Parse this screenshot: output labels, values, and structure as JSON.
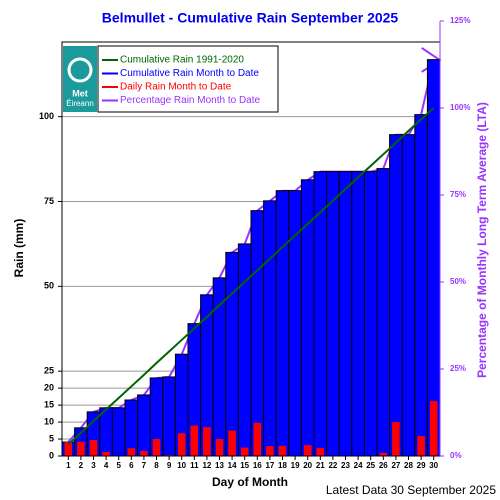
{
  "chart_data": {
    "type": "bar",
    "title": "Belmullet - Cumulative Rain September   2025",
    "x_label": "Day of Month",
    "y_label": "Rain (mm)",
    "y2_label": "Percentage of Monthly Long Term Average (LTA)",
    "footnote": "Latest Data 30 September 2025",
    "logo_text": [
      "Met",
      "Éireann"
    ],
    "categories": [
      "1",
      "2",
      "3",
      "4",
      "5",
      "6",
      "7",
      "8",
      "9",
      "10",
      "11",
      "12",
      "13",
      "14",
      "15",
      "16",
      "17",
      "18",
      "19",
      "20",
      "21",
      "22",
      "23",
      "24",
      "25",
      "26",
      "27",
      "28",
      "29",
      "30"
    ],
    "ylim": [
      0,
      122
    ],
    "yticks": [
      0,
      5,
      10,
      15,
      20,
      25,
      50,
      75,
      100
    ],
    "y2lim": [
      0,
      125
    ],
    "y2ticks": [
      {
        "value": 0,
        "label": "0%"
      },
      {
        "value": 25,
        "label": "25%"
      },
      {
        "value": 50,
        "label": "50%"
      },
      {
        "value": 75,
        "label": "75%"
      },
      {
        "value": 100,
        "label": "100%"
      },
      {
        "value": 125,
        "label": "125%"
      }
    ],
    "grid": true,
    "legend": "upper left",
    "series": [
      {
        "name": "Cumulative Rain 1991-2020",
        "color": "#006400",
        "kind": "line",
        "values": [
          3.4,
          6.8,
          10.3,
          13.7,
          17.1,
          20.5,
          23.9,
          27.4,
          30.8,
          34.2,
          37.6,
          41.0,
          44.5,
          47.9,
          51.3,
          54.7,
          58.1,
          61.6,
          65.0,
          68.4,
          71.8,
          75.2,
          78.7,
          82.1,
          85.5,
          88.9,
          92.3,
          95.8,
          99.2,
          102.6
        ]
      },
      {
        "name": "Cumulative Rain Month to Date",
        "color": "#0000ff",
        "kind": "bar",
        "values": [
          4.1,
          8.3,
          13.0,
          14.2,
          14.2,
          16.5,
          18.0,
          23.0,
          23.3,
          30.0,
          39.0,
          47.5,
          52.5,
          60.0,
          62.5,
          72.3,
          75.2,
          78.2,
          78.2,
          81.4,
          83.8,
          83.8,
          83.8,
          83.8,
          83.8,
          84.7,
          94.7,
          94.7,
          100.6,
          116.8
        ]
      },
      {
        "name": "Daily Rain Month to Date",
        "color": "#ff0000",
        "kind": "narrow-bar",
        "values": [
          4.1,
          4.2,
          4.7,
          1.2,
          0,
          2.3,
          1.5,
          5.0,
          0.3,
          6.7,
          9.0,
          8.5,
          5.0,
          7.5,
          2.5,
          9.8,
          2.9,
          3.0,
          0,
          3.2,
          2.4,
          0,
          0,
          0,
          0,
          0.9,
          10.0,
          0,
          5.9,
          16.2
        ]
      },
      {
        "name": "Percentage Rain Month to Date",
        "color": "#9933ff",
        "kind": "line",
        "axis": "y2",
        "values": [
          4.0,
          8.1,
          12.7,
          13.8,
          13.8,
          16.1,
          17.5,
          22.4,
          22.7,
          29.2,
          38.0,
          46.3,
          51.2,
          58.5,
          60.9,
          70.5,
          73.3,
          76.2,
          76.2,
          79.3,
          81.7,
          81.7,
          81.7,
          81.7,
          81.7,
          82.6,
          92.3,
          92.3,
          98.1,
          113.8
        ]
      }
    ]
  }
}
